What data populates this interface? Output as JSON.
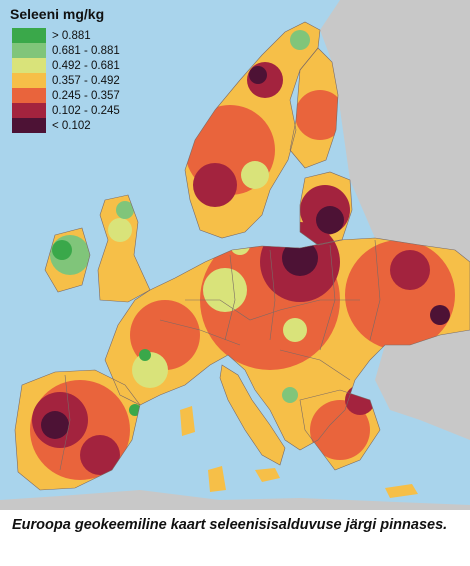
{
  "legend": {
    "title": "Seleeni mg/kg",
    "classes": [
      {
        "label": "> 0.881",
        "color": "#3aa84a"
      },
      {
        "label": "0.681 - 0.881",
        "color": "#80c57a"
      },
      {
        "label": "0.492 - 0.681",
        "color": "#d9e37a"
      },
      {
        "label": "0.357 - 0.492",
        "color": "#f6bf48"
      },
      {
        "label": "0.245 - 0.357",
        "color": "#e9643c"
      },
      {
        "label": "0.102 - 0.245",
        "color": "#a3233e"
      },
      {
        "label": "< 0.102",
        "color": "#4d1235"
      }
    ]
  },
  "caption": "Euroopa geokeemiline kaart seleenisisalduvuse järgi pinnases.",
  "colors": {
    "sea": "#a9d4ec",
    "non_covered_land": "#c8c8c8",
    "border": "#7a6a66"
  }
}
